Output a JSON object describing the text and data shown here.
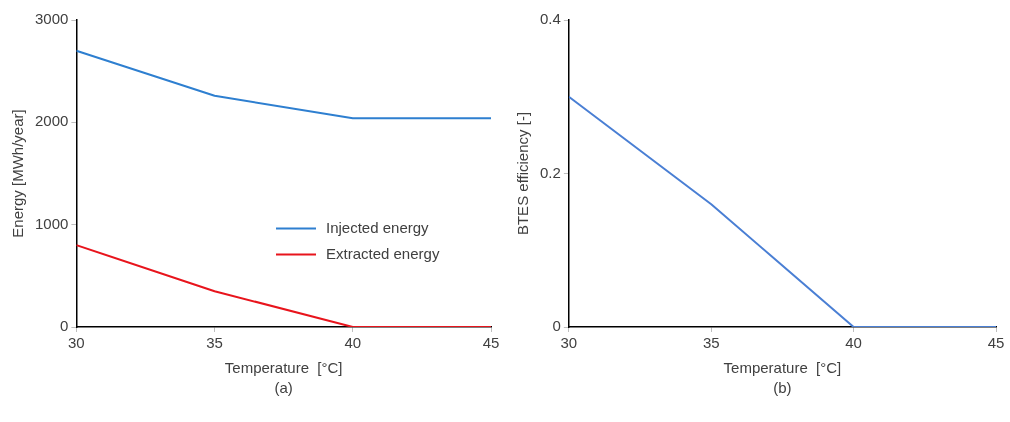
{
  "chart_data": [
    {
      "type": "line",
      "xlabel": "Temperature  [°C]",
      "ylabel": "Energy [MWh/year]",
      "x": [
        30,
        35,
        40,
        45
      ],
      "xlim": [
        30,
        45
      ],
      "xticks": [
        30,
        35,
        40,
        45
      ],
      "ylim": [
        0,
        3000
      ],
      "yticks": [
        0,
        1000,
        2000,
        3000
      ],
      "grid": false,
      "legend": "right",
      "marker": "none",
      "annotations": [
        "(a)"
      ],
      "series": [
        {
          "name": "Injected energy",
          "color": "#2e7fd0",
          "values": [
            2700,
            2260,
            2040,
            2040
          ]
        },
        {
          "name": "Extracted energy",
          "color": "#e8141c",
          "values": [
            800,
            350,
            0,
            0
          ]
        }
      ]
    },
    {
      "type": "line",
      "xlabel": "Temperature  [°C]",
      "ylabel": "BTES efficiency [-]",
      "x": [
        30,
        35,
        40,
        45
      ],
      "xlim": [
        30,
        45
      ],
      "xticks": [
        30,
        35,
        40,
        45
      ],
      "ylim": [
        0,
        0.4
      ],
      "yticks": [
        0,
        0.2,
        0.4
      ],
      "grid": false,
      "legend": false,
      "marker": "none",
      "annotations": [
        "(b)"
      ],
      "series": [
        {
          "color": "#4a7fd4",
          "values": [
            0.3,
            0.16,
            0,
            0
          ]
        }
      ]
    }
  ]
}
